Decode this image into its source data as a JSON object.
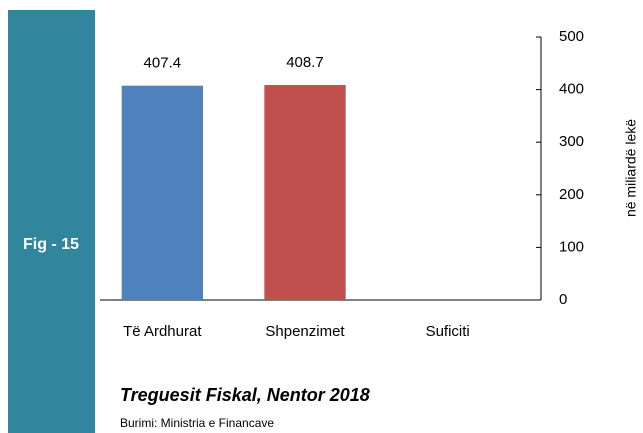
{
  "chart_data": {
    "type": "bar",
    "label": "Fig - 15",
    "title": "Treguesit Fiskal, Nentor 2018",
    "source": "Burimi: Ministria e Financave",
    "y_axis_label": "në miliardë lekë",
    "categories": [
      "Të Ardhurat",
      "Shpenzimet",
      "Suficiti"
    ],
    "series": [
      {
        "name": null,
        "colors": [
          "#4f81bd",
          "#c0504d",
          "#9bbb59"
        ],
        "values": [
          407.4,
          408.7,
          null
        ]
      }
    ],
    "ylim": [
      0,
      500
    ],
    "yticks": [
      0,
      100,
      200,
      300,
      400,
      500
    ],
    "y_axis_side": "right",
    "grid": false
  }
}
